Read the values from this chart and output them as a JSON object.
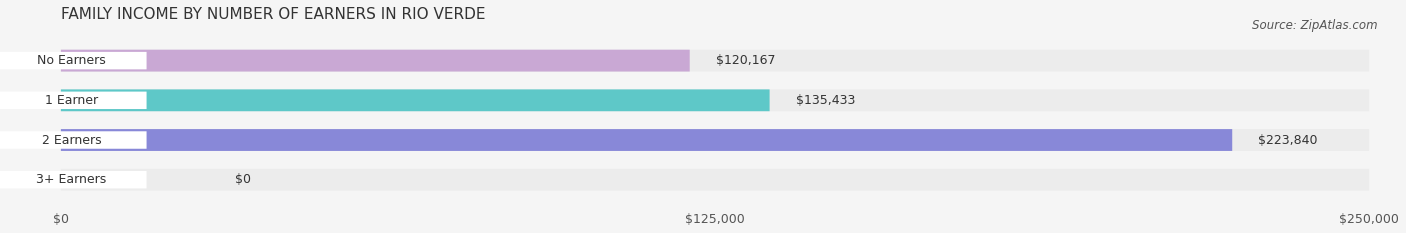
{
  "title": "FAMILY INCOME BY NUMBER OF EARNERS IN RIO VERDE",
  "source": "Source: ZipAtlas.com",
  "categories": [
    "No Earners",
    "1 Earner",
    "2 Earners",
    "3+ Earners"
  ],
  "values": [
    120167,
    135433,
    223840,
    0
  ],
  "bar_colors": [
    "#c9a8d4",
    "#5ec8c8",
    "#8888d8",
    "#f4a0b8"
  ],
  "bar_bg_color": "#ececec",
  "label_bg_color": "#ffffff",
  "xlim": [
    0,
    250000
  ],
  "xticks": [
    0,
    125000,
    250000
  ],
  "xtick_labels": [
    "$0",
    "$125,000",
    "$250,000"
  ],
  "title_fontsize": 11,
  "source_fontsize": 8.5,
  "label_fontsize": 9,
  "value_fontsize": 9,
  "background_color": "#f5f5f5",
  "bar_height": 0.55,
  "bar_bg_alpha": 1.0
}
